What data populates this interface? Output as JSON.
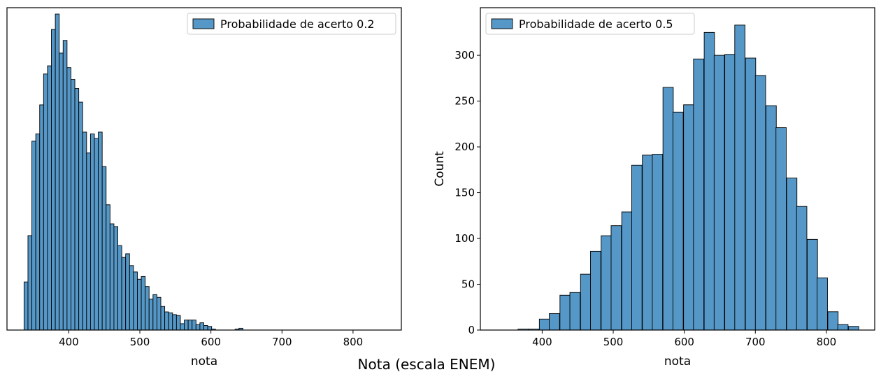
{
  "figure": {
    "suptitle": "Nota (escala ENEM)"
  },
  "colors": {
    "bar_fill": "#5597c6",
    "bar_edge": "#000000"
  },
  "chart_data": [
    {
      "type": "bar",
      "subtype": "histogram",
      "xlabel": "nota",
      "ylabel": "",
      "legend": {
        "label": "Probabilidade de acerto 0.2",
        "placement": "upper right"
      },
      "xlim": [
        313,
        868
      ],
      "ylim": [
        0,
        355
      ],
      "xticks": [
        400,
        500,
        600,
        700,
        800
      ],
      "yticks": [],
      "bin_width": 5.5,
      "bins": [
        [
          337,
          53
        ],
        [
          342.5,
          104
        ],
        [
          348,
          208
        ],
        [
          353.5,
          216
        ],
        [
          359,
          248
        ],
        [
          364.5,
          282
        ],
        [
          370,
          291
        ],
        [
          375.5,
          331
        ],
        [
          381,
          348
        ],
        [
          386.5,
          305
        ],
        [
          392,
          319
        ],
        [
          397.5,
          289
        ],
        [
          403,
          276
        ],
        [
          408.5,
          266
        ],
        [
          414,
          251
        ],
        [
          419.5,
          218
        ],
        [
          425,
          195
        ],
        [
          430.5,
          216
        ],
        [
          436,
          211
        ],
        [
          441.5,
          218
        ],
        [
          447,
          180
        ],
        [
          452.5,
          138
        ],
        [
          458,
          117
        ],
        [
          463.5,
          114
        ],
        [
          469,
          93
        ],
        [
          474.5,
          80
        ],
        [
          480,
          84
        ],
        [
          485.5,
          71
        ],
        [
          491,
          64
        ],
        [
          496.5,
          56
        ],
        [
          502,
          59
        ],
        [
          507.5,
          48
        ],
        [
          513,
          34
        ],
        [
          518.5,
          39
        ],
        [
          524,
          36
        ],
        [
          529.5,
          26
        ],
        [
          535,
          20
        ],
        [
          540.5,
          19
        ],
        [
          546,
          17
        ],
        [
          551.5,
          16
        ],
        [
          557,
          7
        ],
        [
          562.5,
          11
        ],
        [
          568,
          11
        ],
        [
          573.5,
          11
        ],
        [
          579,
          6
        ],
        [
          584.5,
          8
        ],
        [
          590,
          5
        ],
        [
          595.5,
          4
        ],
        [
          601,
          1
        ],
        [
          606.5,
          0
        ],
        [
          612,
          0
        ],
        [
          617.5,
          0
        ],
        [
          623,
          0
        ],
        [
          628.5,
          0
        ],
        [
          634,
          1
        ],
        [
          639.5,
          2
        ],
        [
          645,
          0
        ]
      ]
    },
    {
      "type": "bar",
      "subtype": "histogram",
      "xlabel": "nota",
      "ylabel": "Count",
      "legend": {
        "label": "Probabilidade de acerto 0.5",
        "placement": "upper left"
      },
      "xlim": [
        313,
        868
      ],
      "ylim": [
        0,
        352
      ],
      "xticks": [
        400,
        500,
        600,
        700,
        800
      ],
      "yticks": [
        0,
        50,
        100,
        150,
        200,
        250,
        300
      ],
      "bin_width": 14.5,
      "bins": [
        [
          366,
          1
        ],
        [
          381,
          1
        ],
        [
          396,
          12
        ],
        [
          410,
          18
        ],
        [
          425,
          38
        ],
        [
          439,
          41
        ],
        [
          454,
          61
        ],
        [
          468,
          86
        ],
        [
          483,
          103
        ],
        [
          497,
          114
        ],
        [
          512,
          129
        ],
        [
          526,
          180
        ],
        [
          541,
          191
        ],
        [
          555,
          192
        ],
        [
          570,
          265
        ],
        [
          584,
          238
        ],
        [
          599,
          246
        ],
        [
          613,
          296
        ],
        [
          628,
          325
        ],
        [
          642,
          300
        ],
        [
          657,
          301
        ],
        [
          671,
          333
        ],
        [
          686,
          297
        ],
        [
          700,
          278
        ],
        [
          715,
          245
        ],
        [
          729,
          221
        ],
        [
          744,
          166
        ],
        [
          758,
          135
        ],
        [
          773,
          99
        ],
        [
          787,
          57
        ],
        [
          802,
          20
        ],
        [
          816,
          6
        ],
        [
          831,
          4
        ]
      ]
    }
  ]
}
